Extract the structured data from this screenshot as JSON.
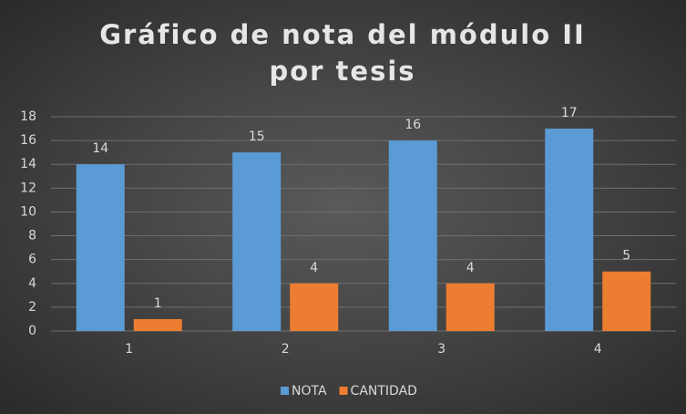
{
  "chart_data": {
    "type": "bar",
    "title": "Gráfico de nota del módulo II por tesis",
    "categories": [
      "1",
      "2",
      "3",
      "4"
    ],
    "series": [
      {
        "name": "NOTA",
        "color": "#5b9bd5",
        "values": [
          14,
          15,
          16,
          17
        ]
      },
      {
        "name": "CANTIDAD",
        "color": "#ed7d31",
        "values": [
          1,
          4,
          4,
          5
        ]
      }
    ],
    "ylim": [
      0,
      18
    ],
    "yticks": [
      0,
      2,
      4,
      6,
      8,
      10,
      12,
      14,
      16,
      18
    ],
    "grid": true,
    "legend": "bottom",
    "data_labels": true
  }
}
